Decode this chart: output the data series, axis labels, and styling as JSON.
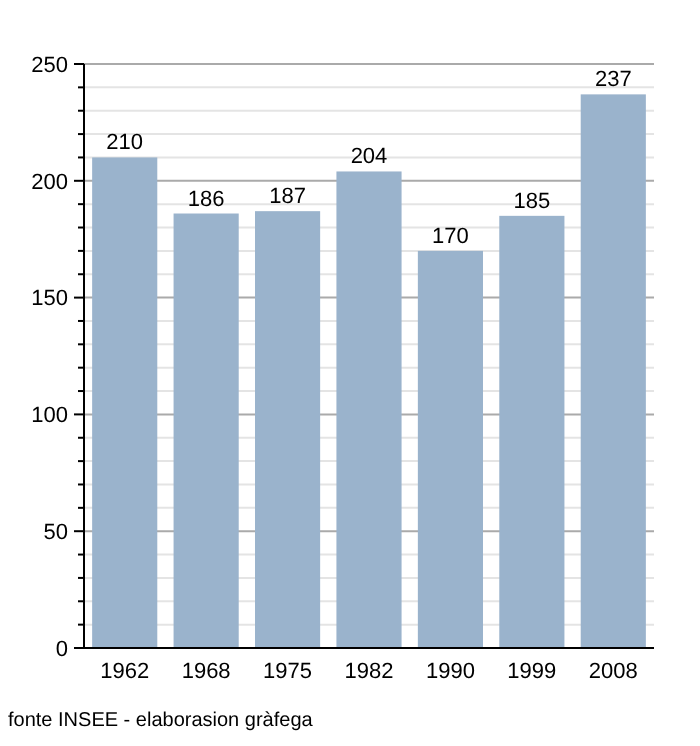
{
  "chart_data": {
    "type": "bar",
    "categories": [
      "1962",
      "1968",
      "1975",
      "1982",
      "1990",
      "1999",
      "2008"
    ],
    "values": [
      210,
      186,
      187,
      204,
      170,
      185,
      237
    ],
    "color": "#9ab3cc",
    "data_labels": true,
    "ylim": [
      0,
      250
    ],
    "yticks": [
      0,
      {
        "value": 10,
        "label": null
      },
      {
        "value": 20,
        "label": null
      },
      {
        "value": 30,
        "label": null
      },
      {
        "value": 40,
        "label": null
      },
      50,
      {
        "value": 60,
        "label": null
      },
      {
        "value": 70,
        "label": null
      },
      {
        "value": 80,
        "label": null
      },
      {
        "value": 90,
        "label": null
      },
      100,
      {
        "value": 110,
        "label": null
      },
      {
        "value": 120,
        "label": null
      },
      {
        "value": 130,
        "label": null
      },
      {
        "value": 140,
        "label": null
      },
      150,
      {
        "value": 160,
        "label": null
      },
      {
        "value": 170,
        "label": null
      },
      {
        "value": 180,
        "label": null
      },
      {
        "value": 190,
        "label": null
      },
      200,
      {
        "value": 210,
        "label": null
      },
      {
        "value": 220,
        "label": null
      },
      {
        "value": 230,
        "label": null
      },
      {
        "value": 240,
        "label": null
      },
      250
    ],
    "grid": "y",
    "annotations": [
      "fonte INSEE - elaborasion gràfega"
    ]
  }
}
